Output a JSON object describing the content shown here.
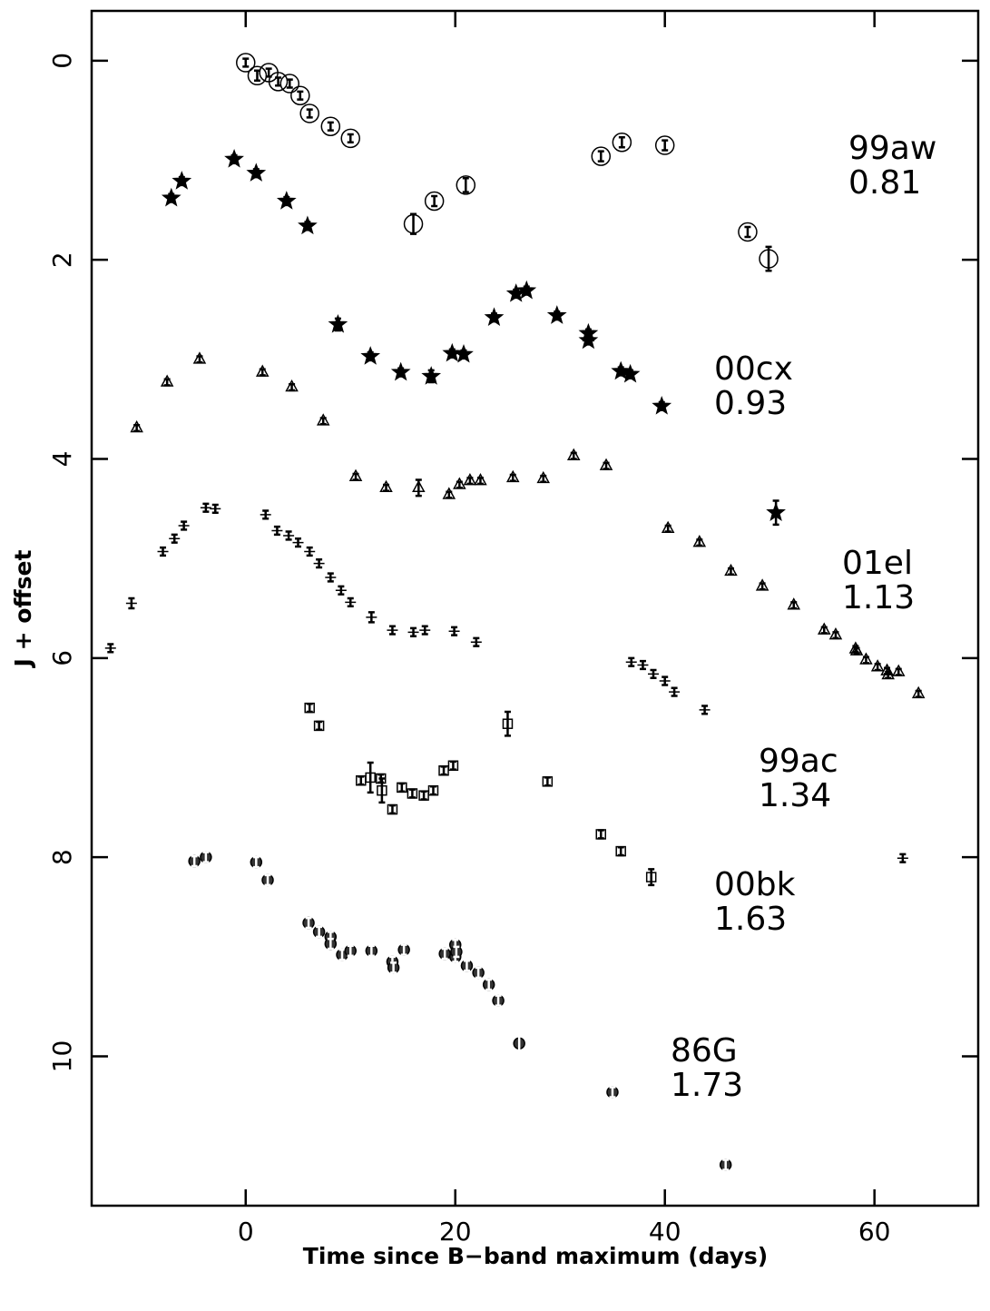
{
  "chart_data": {
    "type": "scatter",
    "xlabel": "Time since B−band maximum (days)",
    "ylabel": "J + offset",
    "xlim": [
      -14.7,
      69.9
    ],
    "xticks": [
      0,
      20,
      40,
      60
    ],
    "ylim": [
      -0.5,
      11.5
    ],
    "yticks": [
      0,
      2,
      4,
      6,
      8,
      10
    ],
    "invert_y": true,
    "series": [
      {
        "name": "99aw",
        "label": "0.81",
        "marker": "circle",
        "color": "#000000",
        "x": [
          0.0,
          1.1,
          2.2,
          3.1,
          4.2,
          5.2,
          6.1,
          8.1,
          10.0,
          16.0,
          18.0,
          21.0,
          33.9,
          35.9,
          40.0,
          47.9,
          49.9
        ],
        "values": [
          0.02,
          0.15,
          0.12,
          0.21,
          0.23,
          0.35,
          0.53,
          0.66,
          0.78,
          1.64,
          1.41,
          1.25,
          0.96,
          0.82,
          0.85,
          1.72,
          1.99
        ],
        "errors": [
          0.04,
          0.05,
          0.04,
          0.04,
          0.04,
          0.04,
          0.04,
          0.04,
          0.04,
          0.1,
          0.05,
          0.07,
          0.05,
          0.05,
          0.05,
          0.05,
          0.12
        ]
      },
      {
        "name": "00cx",
        "label": "0.93",
        "marker": "star",
        "color": "#000000",
        "x": [
          -7.1,
          -6.1,
          -1.1,
          1.0,
          3.9,
          5.9,
          8.8,
          11.9,
          14.8,
          17.7,
          19.7,
          20.8,
          23.7,
          25.8,
          26.8,
          29.7,
          32.7,
          32.7,
          35.8,
          36.7,
          39.7,
          50.6
        ],
        "values": [
          1.38,
          1.21,
          0.99,
          1.13,
          1.41,
          1.66,
          2.65,
          2.97,
          3.13,
          3.17,
          2.94,
          2.95,
          2.58,
          2.34,
          2.31,
          2.56,
          2.74,
          2.81,
          3.12,
          3.15,
          3.47,
          4.54
        ],
        "errors": [
          0.04,
          0.04,
          0.04,
          0.04,
          0.04,
          0.04,
          0.06,
          0.04,
          0.04,
          0.06,
          0.04,
          0.04,
          0.04,
          0.04,
          0.04,
          0.04,
          0.04,
          0.04,
          0.04,
          0.04,
          0.04,
          0.12
        ]
      },
      {
        "name": "01el",
        "label": "1.13",
        "marker": "triangle",
        "color": "#000000",
        "x": [
          -10.4,
          -7.5,
          -4.4,
          1.6,
          4.4,
          7.4,
          10.5,
          13.4,
          16.5,
          19.4,
          20.4,
          21.4,
          22.4,
          25.5,
          28.4,
          31.3,
          34.4,
          40.3,
          43.3,
          46.3,
          49.3,
          52.3,
          55.2,
          56.3,
          58.2,
          58.3,
          59.2,
          60.3,
          61.2,
          61.3,
          62.3,
          64.2
        ],
        "values": [
          3.69,
          3.23,
          3.0,
          3.13,
          3.28,
          3.62,
          4.18,
          4.29,
          4.29,
          4.36,
          4.26,
          4.22,
          4.22,
          4.19,
          4.2,
          3.97,
          4.07,
          4.7,
          4.84,
          5.13,
          5.28,
          5.47,
          5.72,
          5.77,
          5.91,
          5.93,
          6.02,
          6.09,
          6.13,
          6.17,
          6.14,
          6.36
        ],
        "errors": [
          0.03,
          0.03,
          0.03,
          0.03,
          0.03,
          0.03,
          0.03,
          0.03,
          0.08,
          0.03,
          0.03,
          0.03,
          0.03,
          0.03,
          0.03,
          0.03,
          0.03,
          0.03,
          0.03,
          0.03,
          0.03,
          0.03,
          0.03,
          0.03,
          0.03,
          0.03,
          0.03,
          0.03,
          0.03,
          0.03,
          0.03,
          0.03
        ]
      },
      {
        "name": "99ac",
        "label": "1.34",
        "marker": "plus",
        "color": "#000000",
        "x": [
          -12.9,
          -10.9,
          -7.9,
          -6.8,
          -5.9,
          -3.8,
          -2.9,
          1.9,
          3.0,
          4.1,
          5.0,
          6.1,
          7.0,
          8.1,
          9.1,
          10.0,
          12.0,
          14.0,
          16.0,
          17.1,
          19.9,
          22.0,
          36.8,
          37.9,
          38.9,
          40.0,
          40.9,
          43.8,
          62.7
        ],
        "values": [
          5.9,
          5.45,
          4.93,
          4.8,
          4.67,
          4.49,
          4.5,
          4.56,
          4.72,
          4.77,
          4.84,
          4.93,
          5.05,
          5.19,
          5.32,
          5.44,
          5.59,
          5.72,
          5.74,
          5.72,
          5.73,
          5.84,
          6.04,
          6.07,
          6.16,
          6.23,
          6.34,
          6.52,
          8.01
        ],
        "errors": [
          0.04,
          0.05,
          0.04,
          0.04,
          0.04,
          0.04,
          0.04,
          0.04,
          0.04,
          0.04,
          0.04,
          0.04,
          0.04,
          0.04,
          0.04,
          0.04,
          0.05,
          0.04,
          0.04,
          0.04,
          0.04,
          0.04,
          0.04,
          0.04,
          0.04,
          0.04,
          0.04,
          0.04,
          0.04
        ]
      },
      {
        "name": "00bk",
        "label": "1.63",
        "marker": "square",
        "color": "#000000",
        "x": [
          6.1,
          7.0,
          11.0,
          11.9,
          12.9,
          13.0,
          14.0,
          14.9,
          15.9,
          17.0,
          17.9,
          18.9,
          19.8,
          25.0,
          28.8,
          33.9,
          35.8,
          38.7
        ],
        "values": [
          6.5,
          6.68,
          7.23,
          7.2,
          7.21,
          7.33,
          7.52,
          7.3,
          7.36,
          7.38,
          7.33,
          7.13,
          7.08,
          6.66,
          7.24,
          7.77,
          7.94,
          8.2
        ],
        "errors": [
          0.04,
          0.04,
          0.04,
          0.15,
          0.04,
          0.12,
          0.04,
          0.04,
          0.04,
          0.04,
          0.04,
          0.04,
          0.04,
          0.12,
          0.04,
          0.04,
          0.04,
          0.08
        ]
      },
      {
        "name": "86G",
        "label": "1.73",
        "marker": "dot",
        "color": "#000000",
        "x": [
          -4.9,
          -3.8,
          1.0,
          2.1,
          6.0,
          7.0,
          8.1,
          8.1,
          9.2,
          10.0,
          12.0,
          14.0,
          14.1,
          15.1,
          19.0,
          20.0,
          20.0,
          20.1,
          21.1,
          22.2,
          23.2,
          24.1,
          26.1,
          35.0,
          45.8
        ],
        "values": [
          8.04,
          8.0,
          8.05,
          8.23,
          8.66,
          8.75,
          8.8,
          8.87,
          8.98,
          8.94,
          8.94,
          9.05,
          9.11,
          8.93,
          8.97,
          8.88,
          9.0,
          8.95,
          9.09,
          9.16,
          9.28,
          9.44,
          9.87,
          10.36,
          11.09
        ],
        "errors": [
          0.05,
          0.05,
          0.05,
          0.05,
          0.05,
          0.05,
          0.05,
          0.05,
          0.05,
          0.05,
          0.05,
          0.05,
          0.05,
          0.05,
          0.05,
          0.05,
          0.05,
          0.05,
          0.05,
          0.05,
          0.05,
          0.05,
          0.08,
          0.05,
          0.05
        ]
      }
    ]
  }
}
